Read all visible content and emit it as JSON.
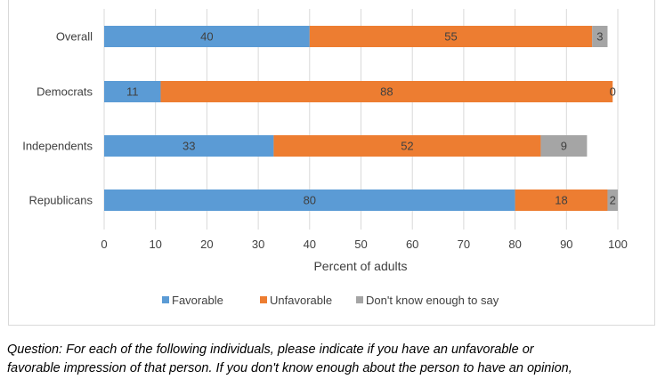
{
  "chart_data": {
    "type": "bar",
    "orientation": "horizontal",
    "stacked": true,
    "categories": [
      "Overall",
      "Democrats",
      "Independents",
      "Republicans"
    ],
    "series": [
      {
        "name": "Favorable",
        "color": "#5b9bd5",
        "values": [
          40,
          11,
          33,
          80
        ]
      },
      {
        "name": "Unfavorable",
        "color": "#ed7d31",
        "values": [
          55,
          88,
          52,
          18
        ]
      },
      {
        "name": "Don't know enough to say",
        "color": "#a5a5a5",
        "values": [
          3,
          0,
          9,
          2
        ]
      }
    ],
    "xlabel": "Percent of adults",
    "xlim": [
      0,
      100
    ],
    "xticks": [
      "0",
      "10",
      "20",
      "30",
      "40",
      "50",
      "60",
      "70",
      "80",
      "90",
      "100"
    ],
    "grid": true,
    "legend": "bottom"
  },
  "note": {
    "line1": "Question:  For each of the following individuals, please indicate if you have an unfavorable or",
    "line2": "favorable impression of that person. If you don't know enough about the person to have an opinion,"
  }
}
